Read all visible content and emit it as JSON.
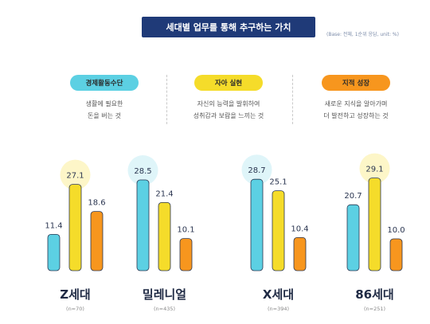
{
  "title": "세대별 업무를 통해 추구하는 가치",
  "base_note": "(Base: 전체, 1순위 응답, unit: %)",
  "categories": [
    {
      "label": "경제활동수단",
      "desc1": "생활에 필요한",
      "desc2": "돈을 버는 것",
      "color": "#5cd0e3"
    },
    {
      "label": "자아 실현",
      "desc1": "자신의 능력을 발휘하여",
      "desc2": "성취감과 보람을 느끼는 것",
      "color": "#f5dc2a"
    },
    {
      "label": "지적 성장",
      "desc1": "새로운 지식을 알아가며",
      "desc2": "더 발전하고 성장하는 것",
      "color": "#f7961e"
    }
  ],
  "chart_data": {
    "type": "bar",
    "categories": [
      "Z세대",
      "밀레니얼",
      "X세대",
      "86세대"
    ],
    "sample_sizes": [
      "(n=70)",
      "(n=435)",
      "(n=394)",
      "(n=251)"
    ],
    "series": [
      {
        "name": "경제활동수단",
        "values": [
          11.4,
          28.5,
          28.7,
          20.7
        ],
        "color": "#5cd0e3"
      },
      {
        "name": "자아 실현",
        "values": [
          27.1,
          21.4,
          25.1,
          29.1
        ],
        "color": "#f5dc2a"
      },
      {
        "name": "지적 성장",
        "values": [
          18.6,
          10.1,
          10.4,
          10.0
        ],
        "color": "#f7961e"
      }
    ],
    "ylim": [
      0,
      30
    ]
  }
}
